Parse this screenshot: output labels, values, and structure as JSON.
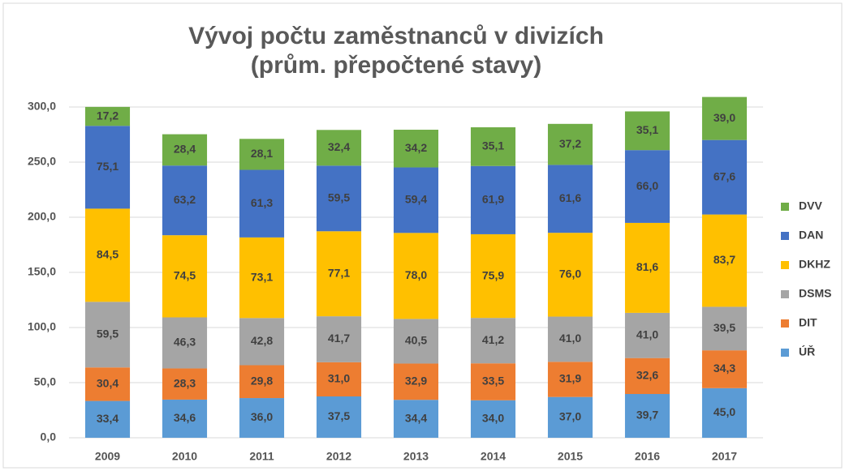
{
  "chart_data": {
    "type": "stacked-bar",
    "title": [
      "Vývoj počtu zaměstnanců v divizích",
      "(prům. přepočtené stavy)"
    ],
    "categories": [
      "2009",
      "2010",
      "2011",
      "2012",
      "2013",
      "2014",
      "2015",
      "2016",
      "2017"
    ],
    "ylim": [
      0,
      300
    ],
    "yticks": [
      {
        "value": 0,
        "label": "0,0"
      },
      {
        "value": 50,
        "label": "50,0"
      },
      {
        "value": 100,
        "label": "100,0"
      },
      {
        "value": 150,
        "label": "150,0"
      },
      {
        "value": 200,
        "label": "200,0"
      },
      {
        "value": 250,
        "label": "250,0"
      },
      {
        "value": 300,
        "label": "300,0"
      }
    ],
    "grid": true,
    "legend": "right",
    "series": [
      {
        "name": "ÚŘ",
        "color": "#5b9bd5",
        "values": [
          33.4,
          34.6,
          36.0,
          37.5,
          34.4,
          34.0,
          37.0,
          39.7,
          45.0
        ],
        "value_labels": [
          "33,4",
          "34,6",
          "36,0",
          "37,5",
          "34,4",
          "34,0",
          "37,0",
          "39,7",
          "45,0"
        ]
      },
      {
        "name": "DIT",
        "color": "#ed7d31",
        "values": [
          30.4,
          28.3,
          29.8,
          31.0,
          32.9,
          33.5,
          31.9,
          32.6,
          34.3
        ],
        "value_labels": [
          "30,4",
          "28,3",
          "29,8",
          "31,0",
          "32,9",
          "33,5",
          "31,9",
          "32,6",
          "34,3"
        ]
      },
      {
        "name": "DSMS",
        "color": "#a5a5a5",
        "values": [
          59.5,
          46.3,
          42.8,
          41.7,
          40.5,
          41.2,
          41.0,
          41.0,
          39.5
        ],
        "value_labels": [
          "59,5",
          "46,3",
          "42,8",
          "41,7",
          "40,5",
          "41,2",
          "41,0",
          "41,0",
          "39,5"
        ]
      },
      {
        "name": "DKHZ",
        "color": "#ffc000",
        "values": [
          84.5,
          74.5,
          73.1,
          77.1,
          78.0,
          75.9,
          76.0,
          81.6,
          83.7
        ],
        "value_labels": [
          "84,5",
          "74,5",
          "73,1",
          "77,1",
          "78,0",
          "75,9",
          "76,0",
          "81,6",
          "83,7"
        ]
      },
      {
        "name": "DAN",
        "color": "#4472c4",
        "values": [
          75.1,
          63.2,
          61.3,
          59.5,
          59.4,
          61.9,
          61.6,
          66.0,
          67.6
        ],
        "value_labels": [
          "75,1",
          "63,2",
          "61,3",
          "59,5",
          "59,4",
          "61,9",
          "61,6",
          "66,0",
          "67,6"
        ]
      },
      {
        "name": "DVV",
        "color": "#70ad47",
        "values": [
          17.2,
          28.4,
          28.1,
          32.4,
          34.2,
          35.1,
          37.2,
          35.1,
          39.0
        ],
        "value_labels": [
          "17,2",
          "28,4",
          "28,1",
          "32,4",
          "34,2",
          "35,1",
          "37,2",
          "35,1",
          "39,0"
        ]
      }
    ]
  }
}
